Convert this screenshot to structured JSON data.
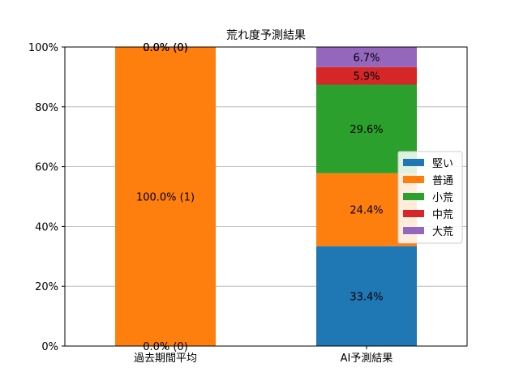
{
  "chart_data": {
    "type": "bar",
    "stacked": true,
    "title": "荒れ度予測結果",
    "categories": [
      "過去期間平均",
      "AI予測結果"
    ],
    "ylim": [
      0,
      100
    ],
    "yticks": [
      0,
      20,
      40,
      60,
      80,
      100
    ],
    "ytick_labels": [
      "0%",
      "20%",
      "40%",
      "60%",
      "80%",
      "100%"
    ],
    "grid": true,
    "legend_position": "center-right",
    "series": [
      {
        "name": "堅い",
        "color": "#1f77b4",
        "values": [
          0,
          33.4
        ],
        "labels": [
          "0.0% (0)",
          "33.4%"
        ]
      },
      {
        "name": "普通",
        "color": "#ff7f0e",
        "values": [
          100,
          24.4
        ],
        "labels": [
          "100.0% (1)",
          "24.4%"
        ]
      },
      {
        "name": "小荒",
        "color": "#2ca02c",
        "values": [
          0,
          29.6
        ],
        "labels": [
          "0.0% (0)",
          "29.6%"
        ]
      },
      {
        "name": "中荒",
        "color": "#d62728",
        "values": [
          0,
          5.9
        ],
        "labels": [
          "0.0% (0)",
          "5.9%"
        ]
      },
      {
        "name": "大荒",
        "color": "#9467bd",
        "values": [
          0,
          6.7
        ],
        "labels": [
          "0.0% (0)",
          "6.7%"
        ]
      }
    ]
  }
}
